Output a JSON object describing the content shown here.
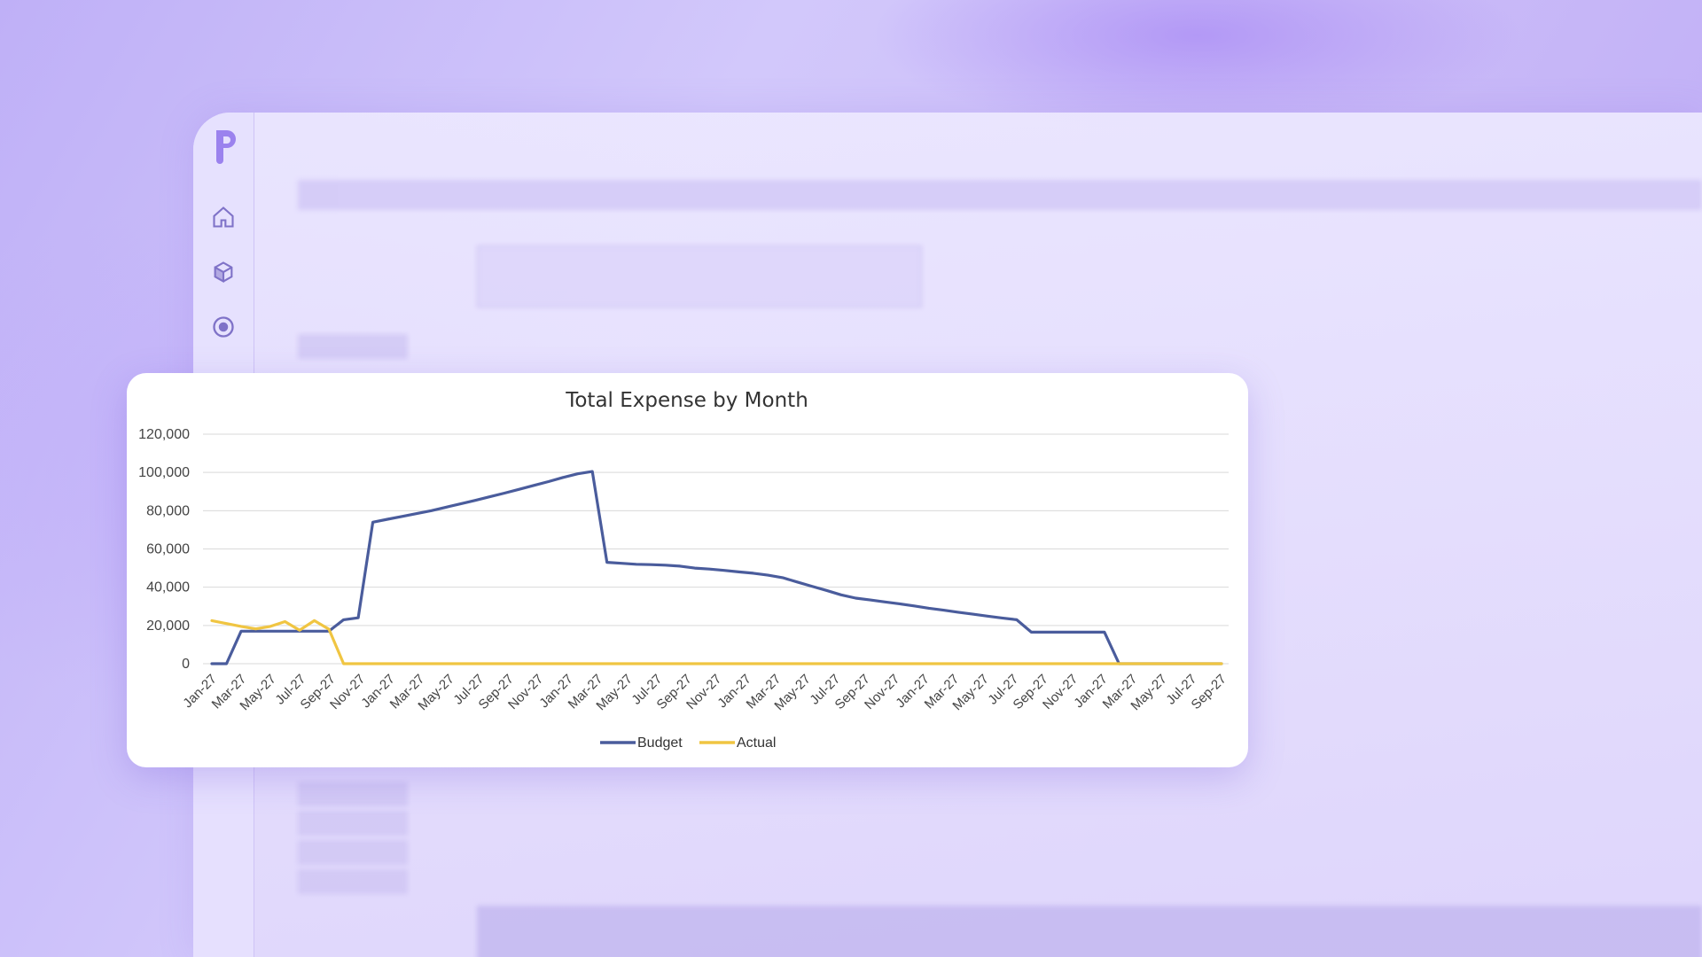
{
  "colors": {
    "budget": "#4a5c9c",
    "actual": "#f0c542",
    "grid": "#d9d9d9",
    "brand": "#9b82ee"
  },
  "sidebar": {
    "items": [
      {
        "icon": "home-icon"
      },
      {
        "icon": "cube-icon"
      },
      {
        "icon": "target-icon"
      }
    ]
  },
  "chart_data": {
    "type": "line",
    "title": "Total Expense by Month",
    "xlabel": "",
    "ylabel": "",
    "ylim": [
      0,
      120000
    ],
    "yticks": [
      "120,000",
      "100,000",
      "80,000",
      "60,000",
      "40,000",
      "20,000",
      "0"
    ],
    "x_tick_labels": [
      "Jan-27",
      "Mar-27",
      "May-27",
      "Jul-27",
      "Sep-27",
      "Nov-27",
      "Jan-27",
      "Mar-27",
      "May-27",
      "Jul-27",
      "Sep-27",
      "Nov-27",
      "Jan-27",
      "Mar-27",
      "May-27",
      "Jul-27",
      "Sep-27",
      "Nov-27",
      "Jan-27",
      "Mar-27",
      "May-27",
      "Jul-27",
      "Sep-27",
      "Nov-27",
      "Jan-27",
      "Mar-27",
      "May-27",
      "Jul-27",
      "Sep-27",
      "Nov-27",
      "Jan-27",
      "Mar-27",
      "May-27",
      "Jul-27",
      "Sep-27"
    ],
    "series": [
      {
        "name": "Budget",
        "values": [
          0,
          0,
          17000,
          17000,
          17000,
          17000,
          17000,
          17000,
          17000,
          23000,
          24000,
          74000,
          75500,
          77000,
          78500,
          80000,
          81800,
          83600,
          85400,
          87300,
          89200,
          91200,
          93200,
          95200,
          97400,
          99300,
          100500,
          53000,
          52500,
          52000,
          51800,
          51500,
          51000,
          50000,
          49500,
          48800,
          48000,
          47300,
          46300,
          45000,
          42700,
          40500,
          38300,
          36000,
          34300,
          33300,
          32300,
          31300,
          30200,
          29000,
          28000,
          26900,
          25900,
          24900,
          23900,
          23000,
          16500,
          16500,
          16500,
          16500,
          16500,
          16500,
          0,
          0,
          0,
          0,
          0,
          0,
          0,
          0
        ]
      },
      {
        "name": "Actual",
        "values": [
          22500,
          21000,
          19500,
          18200,
          19500,
          22000,
          17500,
          22500,
          18000,
          0,
          0,
          0,
          0,
          0,
          0,
          0,
          0,
          0,
          0,
          0,
          0,
          0,
          0,
          0,
          0,
          0,
          0,
          0,
          0,
          0,
          0,
          0,
          0,
          0,
          0,
          0,
          0,
          0,
          0,
          0,
          0,
          0,
          0,
          0,
          0,
          0,
          0,
          0,
          0,
          0,
          0,
          0,
          0,
          0,
          0,
          0,
          0,
          0,
          0,
          0,
          0,
          0,
          0,
          0,
          0,
          0,
          0,
          0,
          0,
          0
        ]
      }
    ],
    "legend": "bottom",
    "grid": true
  }
}
